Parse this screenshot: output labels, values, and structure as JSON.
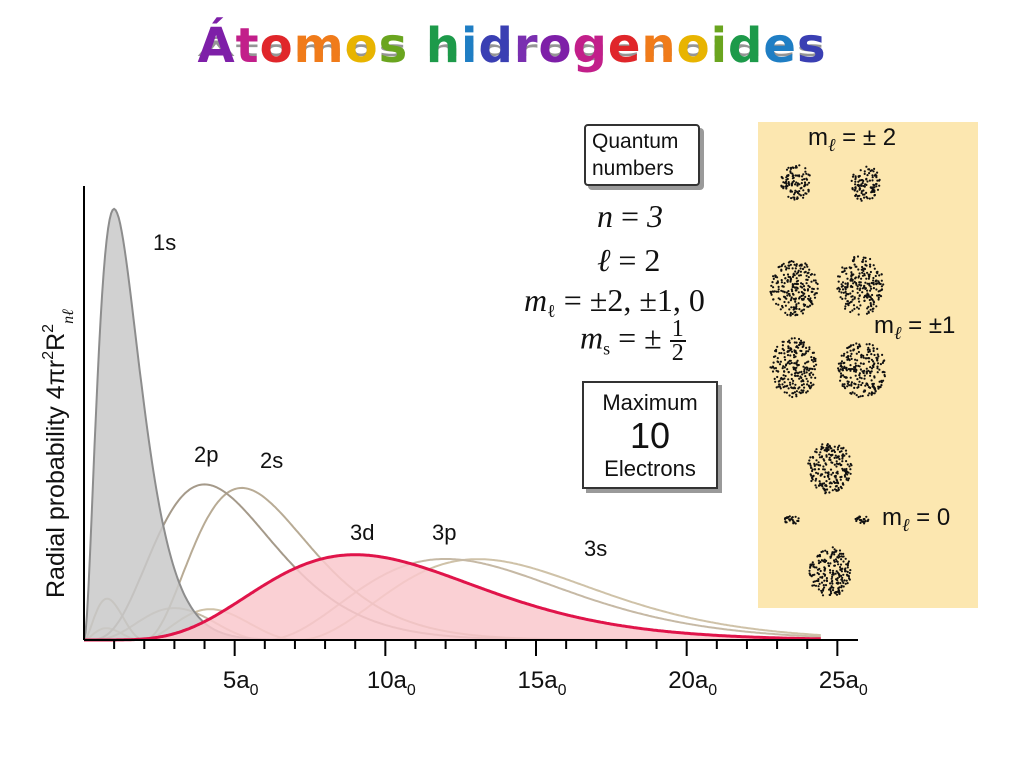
{
  "title": "Átomos hidrogenoides",
  "title_colors": [
    "#7e1fa8",
    "#c21f8a",
    "#e0262a",
    "#f07b1a",
    "#e8b400",
    "#6aa51f",
    "#1d9a4a",
    "#1f7ec4",
    "#3a3fb3",
    "#7a2fb0"
  ],
  "chart_data": {
    "type": "line",
    "ylabel": "Radial probability 4πr²R²nℓ",
    "ylabel_parts": {
      "main": "Radial probability 4πr",
      "sup": "2",
      "r": "R",
      "sup2": "2",
      "sub": "nℓ"
    },
    "xlim": [
      0,
      25
    ],
    "x_ticks": [
      5,
      10,
      15,
      20,
      25
    ],
    "x_tick_labels": [
      "5a₀",
      "10a₀",
      "15a₀",
      "20a₀",
      "25a₀"
    ],
    "x_tick_labels_parts": [
      {
        "main": "5a",
        "sub": "0"
      },
      {
        "main": "10a",
        "sub": "0"
      },
      {
        "main": "15a",
        "sub": "0"
      },
      {
        "main": "20a",
        "sub": "0"
      },
      {
        "main": "25a",
        "sub": "0"
      }
    ],
    "series": [
      {
        "name": "1s",
        "n": 1,
        "l": 0,
        "color": "#8d8d8d",
        "fill": "#c9c9c9",
        "highlight": false
      },
      {
        "name": "2s",
        "n": 2,
        "l": 0,
        "color": "#b8ab95",
        "fill": null,
        "highlight": false
      },
      {
        "name": "2p",
        "n": 2,
        "l": 1,
        "color": "#a59a8a",
        "fill": null,
        "highlight": false
      },
      {
        "name": "3s",
        "n": 3,
        "l": 0,
        "color": "#cfc2a8",
        "fill": null,
        "highlight": false
      },
      {
        "name": "3p",
        "n": 3,
        "l": 1,
        "color": "#c6b9a5",
        "fill": null,
        "highlight": false
      },
      {
        "name": "3d",
        "n": 3,
        "l": 2,
        "color": "#e0144a",
        "fill": "#f9c8cc",
        "highlight": true
      }
    ],
    "series_labels": [
      {
        "name": "1s",
        "x": 2.5
      },
      {
        "name": "2p",
        "x": 4
      },
      {
        "name": "2s",
        "x": 6
      },
      {
        "name": "3d",
        "x": 9
      },
      {
        "name": "3p",
        "x": 12
      },
      {
        "name": "3s",
        "x": 16.5
      }
    ]
  },
  "quantum_numbers": {
    "box_label_line1": "Quantum",
    "box_label_line2": "numbers",
    "n": {
      "symbol": "n",
      "eq": " = ",
      "value": "3"
    },
    "l": {
      "symbol": "ℓ",
      "eq": " = ",
      "value": "2"
    },
    "ml": {
      "symbol": "m",
      "sub": "ℓ",
      "eq": " = ",
      "value": "±2, ±1, 0"
    },
    "ms": {
      "symbol": "m",
      "sub": "s",
      "eq": " = ± ",
      "num": "1",
      "den": "2"
    }
  },
  "maximum_box": {
    "line1": "Maximum",
    "value": "10",
    "line2": "Electrons"
  },
  "orbital_panel": {
    "label_ml2": {
      "m": "m",
      "sub": "ℓ",
      "text": " = ± 2"
    },
    "label_ml1": {
      "m": "m",
      "sub": "ℓ",
      "text": " = ±1"
    },
    "label_ml0": {
      "m": "m",
      "sub": "ℓ",
      "text": " = 0"
    }
  }
}
